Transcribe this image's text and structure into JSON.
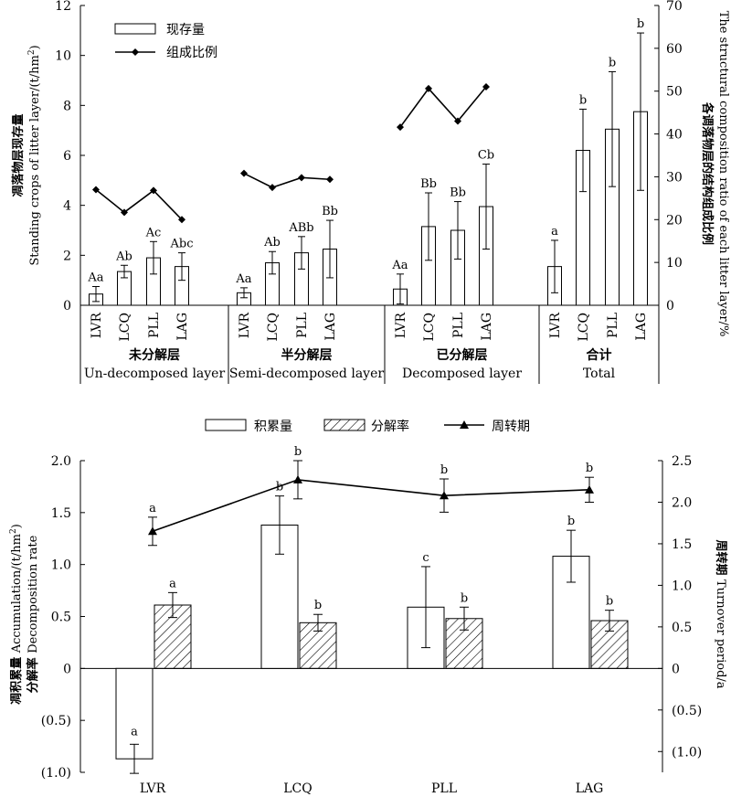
{
  "chart_data": [
    {
      "type": "bar",
      "left_axis": {
        "label_cn": "凋落物层现存量",
        "label_en": "Standing crops of litter layer/(t/hm",
        "label_sup": "2",
        "label_close": ")",
        "ylim": [
          0,
          12
        ],
        "ticks": [
          "0",
          "2",
          "4",
          "6",
          "8",
          "10",
          "12"
        ]
      },
      "right_axis": {
        "label_cn": "各调落物层的结构组成比例",
        "label_en": "The structural composition ratio of each litter layer/%",
        "ylim": [
          0,
          70
        ],
        "ticks": [
          "0",
          "10",
          "20",
          "30",
          "40",
          "50",
          "60",
          "70"
        ]
      },
      "legend": [
        {
          "key": "bar",
          "label": "现存量"
        },
        {
          "key": "line",
          "label": "组成比例"
        }
      ],
      "groups": [
        {
          "cn": "未分解层",
          "en": "Un-decomposed  layer",
          "categories": [
            "LVR",
            "LCQ",
            "PLL",
            "LAG"
          ],
          "values": [
            0.45,
            1.35,
            1.9,
            1.55
          ],
          "errors": [
            0.3,
            0.25,
            0.65,
            0.55
          ],
          "labels": [
            "Aa",
            "Ab",
            "Ac",
            "Abc"
          ],
          "ratio": [
            27,
            21.7,
            26.8,
            20
          ]
        },
        {
          "cn": "半分解层",
          "en": "Semi-decomposed layer",
          "categories": [
            "LVR",
            "LCQ",
            "PLL",
            "LAG"
          ],
          "values": [
            0.5,
            1.7,
            2.1,
            2.25
          ],
          "errors": [
            0.2,
            0.45,
            0.65,
            1.15
          ],
          "labels": [
            "Aa",
            "Ab",
            "ABb",
            "Bb"
          ],
          "ratio": [
            30.8,
            27.5,
            29.8,
            29.4
          ]
        },
        {
          "cn": "已分解层",
          "en": "Decomposed layer",
          "categories": [
            "LVR",
            "LCQ",
            "PLL",
            "LAG"
          ],
          "values": [
            0.65,
            3.15,
            3.0,
            3.95
          ],
          "errors": [
            0.6,
            1.35,
            1.15,
            1.7
          ],
          "labels": [
            "Aa",
            "Bb",
            "Bb",
            "Cb"
          ],
          "ratio": [
            41.6,
            50.6,
            43,
            51
          ]
        },
        {
          "cn": "合计",
          "en": "Total",
          "categories": [
            "LVR",
            "LCQ",
            "PLL",
            "LAG"
          ],
          "values": [
            1.55,
            6.2,
            7.05,
            7.75
          ],
          "errors": [
            1.05,
            1.65,
            2.3,
            3.15
          ],
          "labels": [
            "a",
            "b",
            "b",
            "b"
          ],
          "ratio": null
        }
      ]
    },
    {
      "type": "bar",
      "left_axis": {
        "label_cn": "凋积累量",
        "label_en": "Accumulation/(t/hm",
        "label_sup": "2",
        "label_close": ")",
        "label_cn2": "分解率",
        "label_en2": "Decomposition rate",
        "ylim": [
          -1.0,
          2.0
        ],
        "ticks": [
          "(1.0)",
          "(0.5)",
          "0",
          "0.5",
          "1.0",
          "1.5",
          "2.0"
        ]
      },
      "right_axis": {
        "label_cn": "周转期",
        "label_en": "Turnover period/a",
        "ylim": [
          -1.25,
          2.5
        ],
        "ticks": [
          "(1.0)",
          "(0.5)",
          "0",
          "0.5",
          "1.0",
          "1.5",
          "2.0",
          "2.5"
        ]
      },
      "legend": [
        {
          "key": "bar",
          "label": "积累量"
        },
        {
          "key": "hatch",
          "label": "分解率"
        },
        {
          "key": "tri",
          "label": "周转期"
        }
      ],
      "categories": [
        "LVR",
        "LCQ",
        "PLL",
        "LAG"
      ],
      "series": [
        {
          "name": "积累量",
          "values": [
            -0.87,
            1.38,
            0.59,
            1.08
          ],
          "errors": [
            0.14,
            0.28,
            0.39,
            0.25
          ],
          "labels": [
            "a",
            "b",
            "c",
            "b"
          ]
        },
        {
          "name": "分解率",
          "values": [
            0.61,
            0.44,
            0.48,
            0.46
          ],
          "errors": [
            0.12,
            0.08,
            0.11,
            0.1
          ],
          "labels": [
            "a",
            "b",
            "b",
            "b"
          ]
        },
        {
          "name": "周转期",
          "values": [
            1.65,
            2.27,
            2.08,
            2.15
          ],
          "errors": [
            0.17,
            0.23,
            0.2,
            0.15
          ],
          "labels": [
            "a",
            "b",
            "b",
            "b"
          ]
        }
      ]
    }
  ]
}
